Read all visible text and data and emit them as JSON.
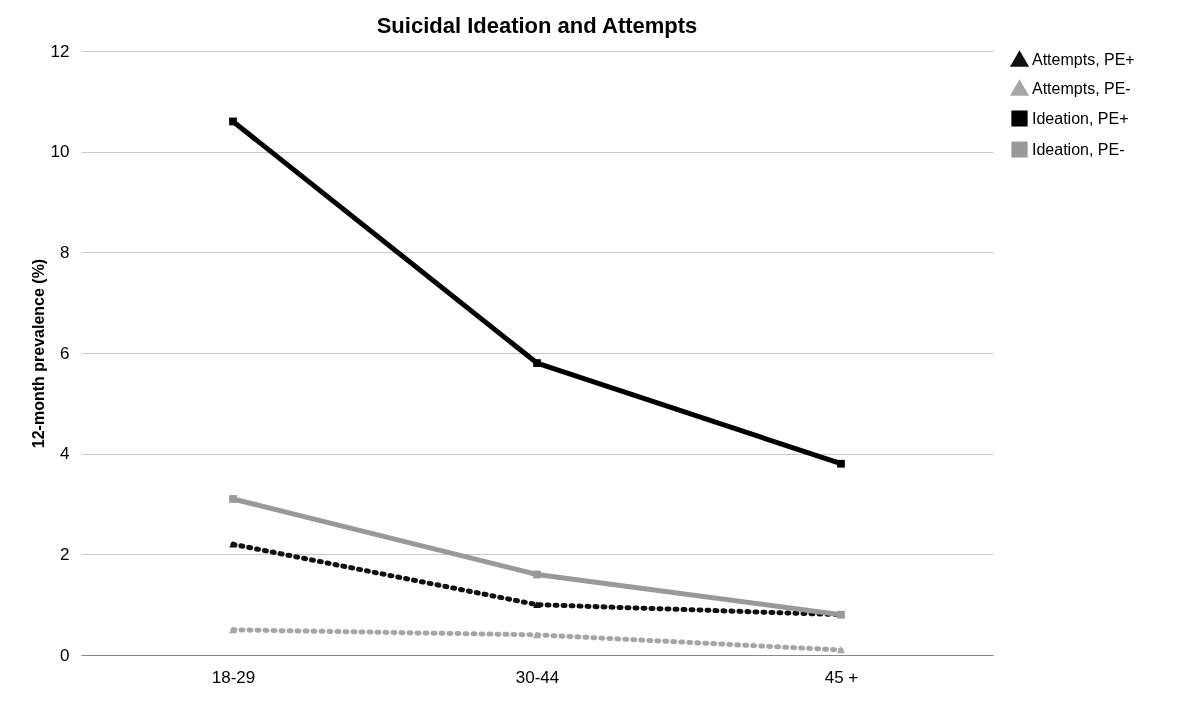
{
  "chart_data": {
    "type": "line",
    "title": "Suicidal Ideation and Attempts",
    "ylabel": "12-month prevalence (%)",
    "categories": [
      "18-29",
      "30-44",
      "45 +"
    ],
    "series": [
      {
        "name": "Attempts, PE+",
        "color": "#111111",
        "values": [
          2.2,
          1.0,
          0.8
        ],
        "line_style": "dotted",
        "marker": "triangle"
      },
      {
        "name": "Attempts, PE-",
        "color": "#a6a6a6",
        "values": [
          0.5,
          0.4,
          0.1
        ],
        "line_style": "dotted",
        "marker": "triangle"
      },
      {
        "name": "Ideation, PE+",
        "color": "#000000",
        "values": [
          10.6,
          5.8,
          3.8
        ],
        "line_style": "solid",
        "marker": "square"
      },
      {
        "name": "Ideation, PE-",
        "color": "#999999",
        "values": [
          3.1,
          1.6,
          0.8
        ],
        "line_style": "solid",
        "marker": "square"
      }
    ],
    "ylim": [
      0,
      12
    ],
    "yticks": [
      0,
      2,
      4,
      6,
      8,
      10,
      12
    ],
    "grid": "y",
    "legend": "right"
  }
}
